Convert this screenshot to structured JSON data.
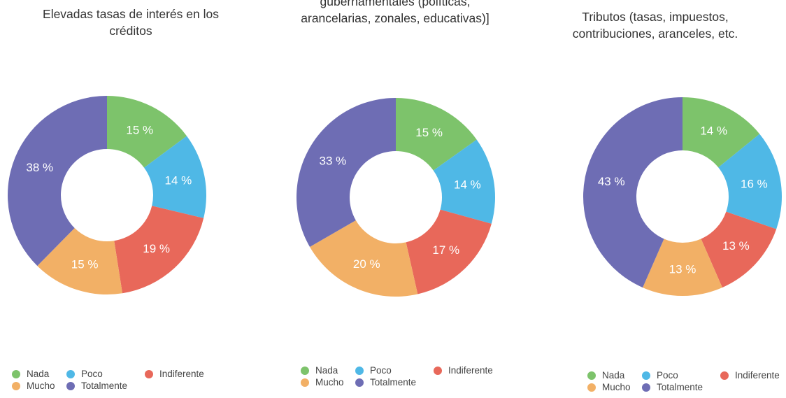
{
  "legend": [
    {
      "label": "Nada",
      "color": "#7dc36b"
    },
    {
      "label": "Poco",
      "color": "#4fb8e6"
    },
    {
      "label": "Indiferente",
      "color": "#e8685a"
    },
    {
      "label": "Mucho",
      "color": "#f2b066"
    },
    {
      "label": "Totalmente",
      "color": "#6e6db4"
    }
  ],
  "chart_data": [
    {
      "type": "pie",
      "title_lines": [
        "Elevadas tasas de interés en los",
        "créditos"
      ],
      "categories": [
        "Nada",
        "Poco",
        "Indiferente",
        "Mucho",
        "Totalmente"
      ],
      "values": [
        15,
        14,
        19,
        15,
        38
      ],
      "labels": [
        "15 %",
        "14 %",
        "19 %",
        "15 %",
        "38 %"
      ],
      "legend": "bottom"
    },
    {
      "type": "pie",
      "title_lines": [
        "gubernamentales (políticas,",
        "arancelarias, zonales, educativas)]"
      ],
      "categories": [
        "Nada",
        "Poco",
        "Indiferente",
        "Mucho",
        "Totalmente"
      ],
      "values": [
        15,
        14,
        17,
        20,
        33
      ],
      "labels": [
        "15 %",
        "14 %",
        "17 %",
        "20 %",
        "33 %"
      ],
      "legend": "bottom"
    },
    {
      "type": "pie",
      "title_lines": [
        "Tributos (tasas, impuestos,",
        "contribuciones, aranceles, etc."
      ],
      "categories": [
        "Nada",
        "Poco",
        "Indiferente",
        "Mucho",
        "Totalmente"
      ],
      "values": [
        14,
        16,
        13,
        13,
        43
      ],
      "labels": [
        "14 %",
        "16 %",
        "13 %",
        "13 %",
        "43 %"
      ],
      "legend": "bottom"
    }
  ]
}
